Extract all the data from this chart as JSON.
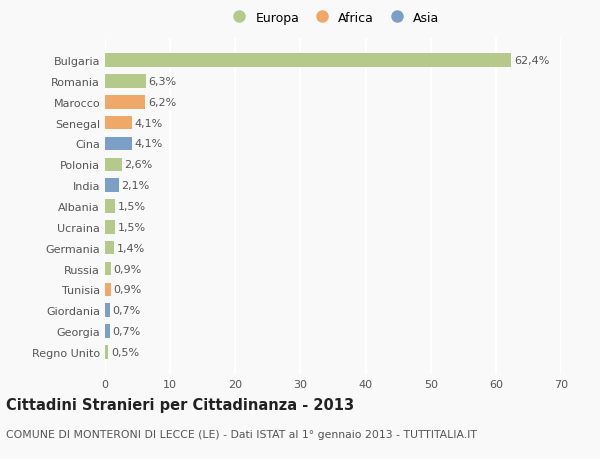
{
  "categories": [
    "Bulgaria",
    "Romania",
    "Marocco",
    "Senegal",
    "Cina",
    "Polonia",
    "India",
    "Albania",
    "Ucraina",
    "Germania",
    "Russia",
    "Tunisia",
    "Giordania",
    "Georgia",
    "Regno Unito"
  ],
  "values": [
    62.4,
    6.3,
    6.2,
    4.1,
    4.1,
    2.6,
    2.1,
    1.5,
    1.5,
    1.4,
    0.9,
    0.9,
    0.7,
    0.7,
    0.5
  ],
  "labels": [
    "62,4%",
    "6,3%",
    "6,2%",
    "4,1%",
    "4,1%",
    "2,6%",
    "2,1%",
    "1,5%",
    "1,5%",
    "1,4%",
    "0,9%",
    "0,9%",
    "0,7%",
    "0,7%",
    "0,5%"
  ],
  "colors": [
    "#b5c98a",
    "#b5c98a",
    "#f0a868",
    "#f0a868",
    "#7b9fc7",
    "#b5c98a",
    "#7b9fc7",
    "#b5c98a",
    "#b5c98a",
    "#b5c98a",
    "#b5c98a",
    "#f0a868",
    "#7b9fc7",
    "#7b9fc7",
    "#b5c98a"
  ],
  "legend_labels": [
    "Europa",
    "Africa",
    "Asia"
  ],
  "legend_colors": [
    "#b5c98a",
    "#f0a868",
    "#7b9fc7"
  ],
  "xlim": [
    0,
    70
  ],
  "xticks": [
    0,
    10,
    20,
    30,
    40,
    50,
    60,
    70
  ],
  "title": "Cittadini Stranieri per Cittadinanza - 2013",
  "subtitle": "COMUNE DI MONTERONI DI LECCE (LE) - Dati ISTAT al 1° gennaio 2013 - TUTTITALIA.IT",
  "background_color": "#f9f9f9",
  "grid_color": "#ffffff",
  "bar_height": 0.65,
  "label_fontsize": 8.0,
  "tick_fontsize": 8.0,
  "title_fontsize": 10.5,
  "subtitle_fontsize": 7.8,
  "legend_fontsize": 9.0
}
